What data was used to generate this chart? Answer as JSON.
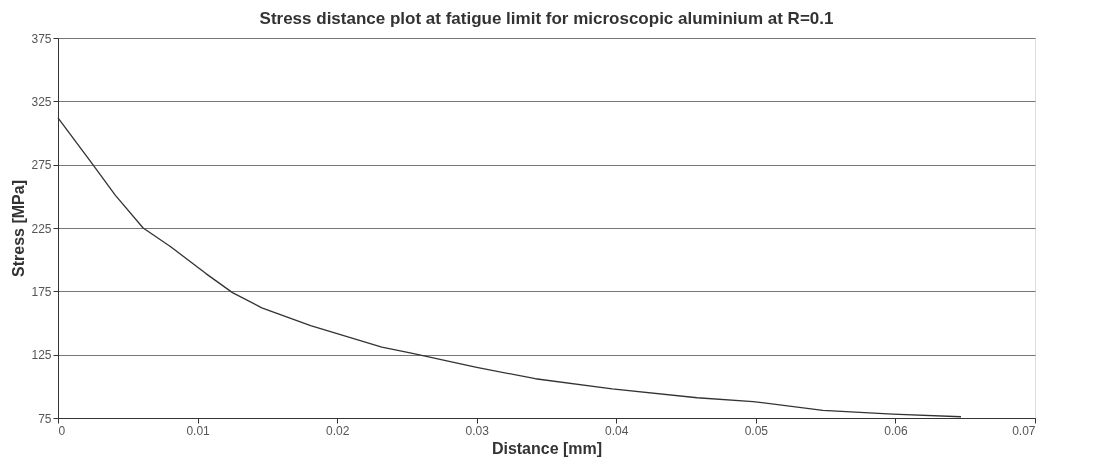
{
  "chart_data": {
    "type": "line",
    "title": "Stress distance plot at fatigue limit for microscopic aluminium at R=0.1",
    "xlabel": "Distance [mm]",
    "ylabel": "Stress [MPa]",
    "x": [
      0,
      0.0023,
      0.0041,
      0.0061,
      0.0081,
      0.0106,
      0.0125,
      0.0146,
      0.0181,
      0.0232,
      0.0254,
      0.03,
      0.0342,
      0.0397,
      0.0458,
      0.0498,
      0.0548,
      0.0598,
      0.0647
    ],
    "series": [
      {
        "color": "#333333",
        "values": [
          312,
          278,
          251,
          225,
          210,
          189,
          174,
          162,
          148,
          131,
          126,
          115,
          106,
          98,
          91,
          88,
          81,
          78,
          76
        ]
      }
    ],
    "xlim": [
      0,
      0.07
    ],
    "xticks": [
      0,
      0.01,
      0.02,
      0.03,
      0.04,
      0.05,
      0.06,
      0.07
    ],
    "ylim": [
      75,
      375
    ],
    "yticks": [
      75,
      125,
      175,
      225,
      275,
      325,
      375
    ],
    "grid": "y",
    "legend": false,
    "marker": "none",
    "line_style": "solid"
  }
}
